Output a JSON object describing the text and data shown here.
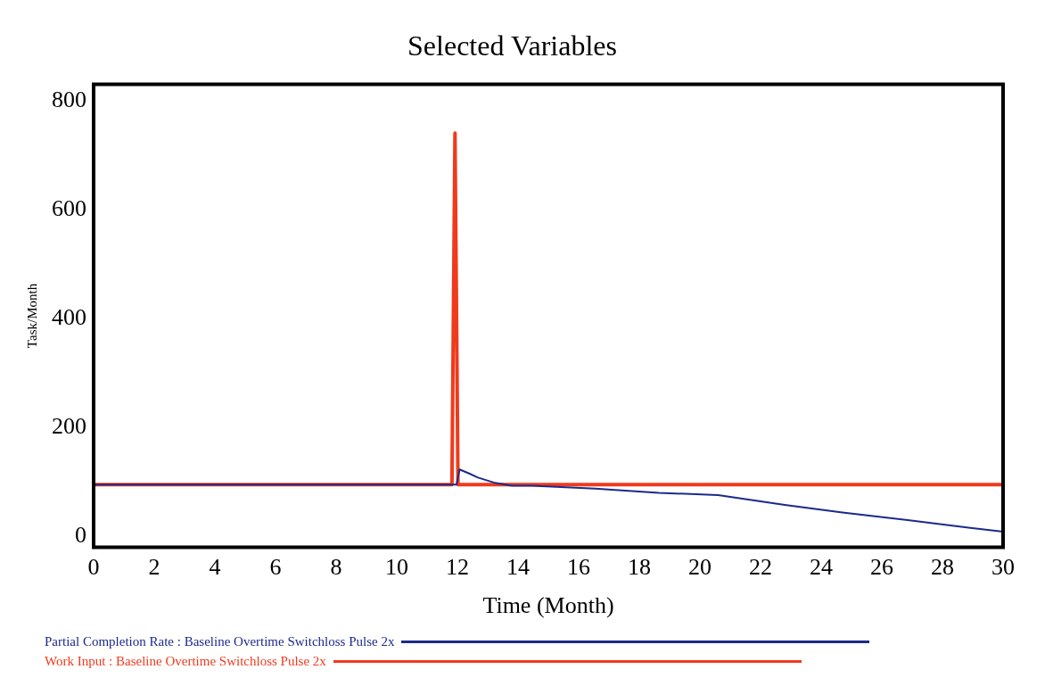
{
  "chart_data": {
    "type": "line",
    "title": "Selected Variables",
    "xlabel": "Time (Month)",
    "ylabel": "Task/Month",
    "xlim": [
      0,
      30
    ],
    "xticks": [
      0,
      2,
      4,
      6,
      8,
      10,
      12,
      14,
      16,
      18,
      20,
      22,
      24,
      26,
      28,
      30
    ],
    "ylim": [
      -20,
      830
    ],
    "yticks": [
      0,
      200,
      400,
      600,
      800
    ],
    "grid": false,
    "legend": "bottom",
    "series": [
      {
        "name": "Partial Completion Rate : Baseline Overtime Switchloss Pulse 2x",
        "color": "#1c2a8a",
        "x": [
          0,
          11.97,
          12.07,
          12.37,
          12.68,
          13.2,
          13.8,
          14.47,
          16.55,
          18.65,
          20.6,
          22.8,
          24.7,
          26.85,
          28.86,
          30
        ],
        "values": [
          95,
          95,
          123,
          116,
          108,
          99,
          93,
          93,
          88,
          80,
          76,
          58,
          44,
          30,
          16,
          9
        ]
      },
      {
        "name": "Work Input : Baseline Overtime Switchloss Pulse 2x",
        "color": "#f03a1c",
        "x": [
          0,
          11.82,
          11.92,
          12.02,
          30
        ],
        "values": [
          95,
          95,
          740,
          95,
          95
        ]
      }
    ]
  }
}
